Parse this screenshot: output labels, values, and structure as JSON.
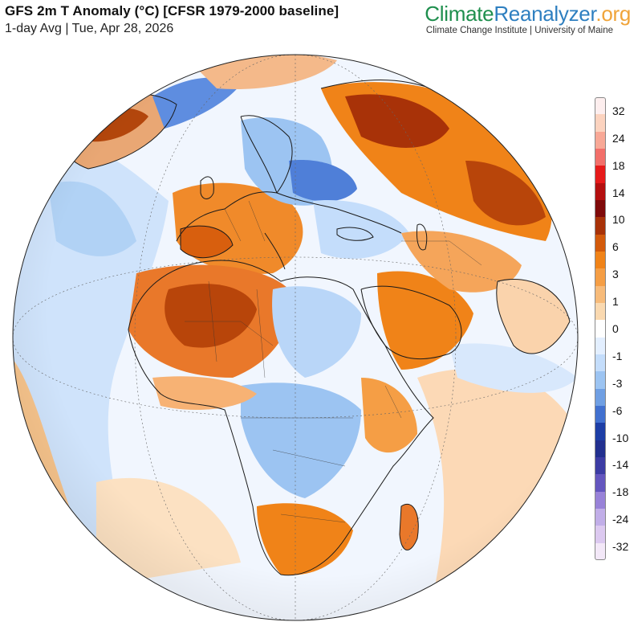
{
  "header": {
    "title": "GFS 2m T Anomaly (°C) [CFSR 1979-2000 baseline]",
    "subtitle": "1-day Avg | Tue, Apr 28, 2026"
  },
  "brand": {
    "part1": "Climate",
    "part2": "Reanalyzer",
    "part3": ".org",
    "tagline": "Climate Change Institute | University of Maine"
  },
  "legend": {
    "colors": [
      "#fdeeee",
      "#fcd3bf",
      "#f8a896",
      "#f26f6a",
      "#e61a1a",
      "#b40f0f",
      "#7f0a0a",
      "#a83208",
      "#d35a0b",
      "#f08318",
      "#f59e45",
      "#f7bb7a",
      "#fad9b0",
      "#ffffff",
      "#e3efff",
      "#c4ddfb",
      "#9cc4f2",
      "#6f9fe3",
      "#4170cf",
      "#1d3ea6",
      "#22308f",
      "#3c3ca4",
      "#6456bf",
      "#9882d8",
      "#c1aee8",
      "#dcc9f0",
      "#f3e8f8"
    ],
    "labels": [
      {
        "text": "32",
        "slot": 1
      },
      {
        "text": "24",
        "slot": 3
      },
      {
        "text": "18",
        "slot": 5
      },
      {
        "text": "14",
        "slot": 7
      },
      {
        "text": "10",
        "slot": 9
      },
      {
        "text": "6",
        "slot": 11
      },
      {
        "text": "3",
        "slot": 13
      },
      {
        "text": "1",
        "slot": 15
      },
      {
        "text": "0",
        "slot": 17
      },
      {
        "text": "-1",
        "slot": 19
      },
      {
        "text": "-3",
        "slot": 21
      },
      {
        "text": "-6",
        "slot": 23
      },
      {
        "text": "-10",
        "slot": 25
      },
      {
        "text": "-14",
        "slot": 27
      },
      {
        "text": "-18",
        "slot": 29
      },
      {
        "text": "-24",
        "slot": 31
      },
      {
        "text": "-32",
        "slot": 33
      }
    ]
  },
  "map": {
    "projection": "orthographic globe centred on Africa/Europe",
    "warm_regions": [
      "Sahara",
      "Europe",
      "Russia",
      "Arabia",
      "Southern Africa",
      "Madagascar"
    ],
    "cool_regions": [
      "Scandinavia/Baltic",
      "Eastern Mediterranean",
      "Central Africa",
      "Greenland coast"
    ]
  }
}
